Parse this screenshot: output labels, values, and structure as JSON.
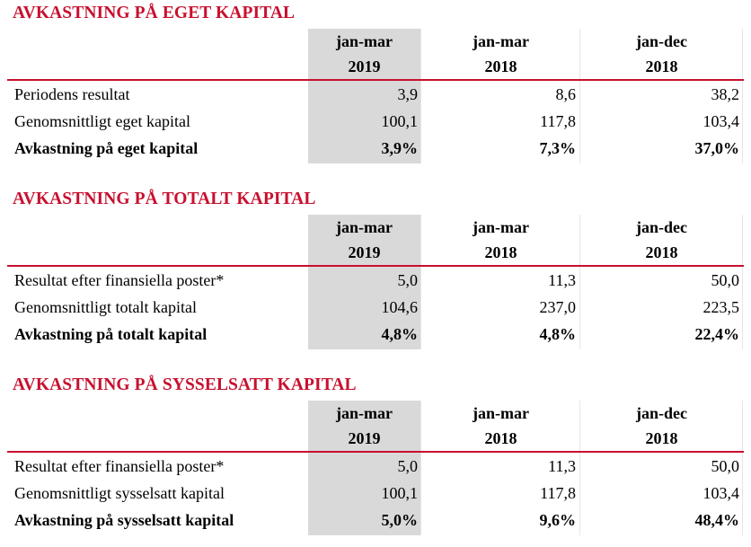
{
  "colors": {
    "accent": "#c8102e",
    "shade": "#d9d9d9"
  },
  "sections": [
    {
      "title": "AVKASTNING PÅ EGET KAPITAL",
      "headers": [
        {
          "period": "jan-mar",
          "year": "2019"
        },
        {
          "period": "jan-mar",
          "year": "2018"
        },
        {
          "period": "jan-dec",
          "year": "2018"
        }
      ],
      "rows": [
        {
          "label": "Periodens resultat",
          "values": [
            "3,9",
            "8,6",
            "38,2"
          ],
          "bold": false
        },
        {
          "label": "Genomsnittligt eget kapital",
          "values": [
            "100,1",
            "117,8",
            "103,4"
          ],
          "bold": false
        },
        {
          "label": "Avkastning på eget kapital",
          "values": [
            "3,9%",
            "7,3%",
            "37,0%"
          ],
          "bold": true
        }
      ]
    },
    {
      "title": "AVKASTNING PÅ TOTALT KAPITAL",
      "headers": [
        {
          "period": "jan-mar",
          "year": "2019"
        },
        {
          "period": "jan-mar",
          "year": "2018"
        },
        {
          "period": "jan-dec",
          "year": "2018"
        }
      ],
      "rows": [
        {
          "label": "Resultat efter finansiella poster*",
          "values": [
            "5,0",
            "11,3",
            "50,0"
          ],
          "bold": false
        },
        {
          "label": "Genomsnittligt totalt kapital",
          "values": [
            "104,6",
            "237,0",
            "223,5"
          ],
          "bold": false
        },
        {
          "label": "Avkastning på totalt kapital",
          "values": [
            "4,8%",
            "4,8%",
            "22,4%"
          ],
          "bold": true
        }
      ]
    },
    {
      "title": "AVKASTNING PÅ SYSSELSATT KAPITAL",
      "headers": [
        {
          "period": "jan-mar",
          "year": "2019"
        },
        {
          "period": "jan-mar",
          "year": "2018"
        },
        {
          "period": "jan-dec",
          "year": "2018"
        }
      ],
      "rows": [
        {
          "label": "Resultat efter finansiella poster*",
          "values": [
            "5,0",
            "11,3",
            "50,0"
          ],
          "bold": false
        },
        {
          "label": "Genomsnittligt sysselsatt kapital",
          "values": [
            "100,1",
            "117,8",
            "103,4"
          ],
          "bold": false
        },
        {
          "label": "Avkastning på sysselsatt kapital",
          "values": [
            "5,0%",
            "9,6%",
            "48,4%"
          ],
          "bold": true
        }
      ]
    }
  ]
}
